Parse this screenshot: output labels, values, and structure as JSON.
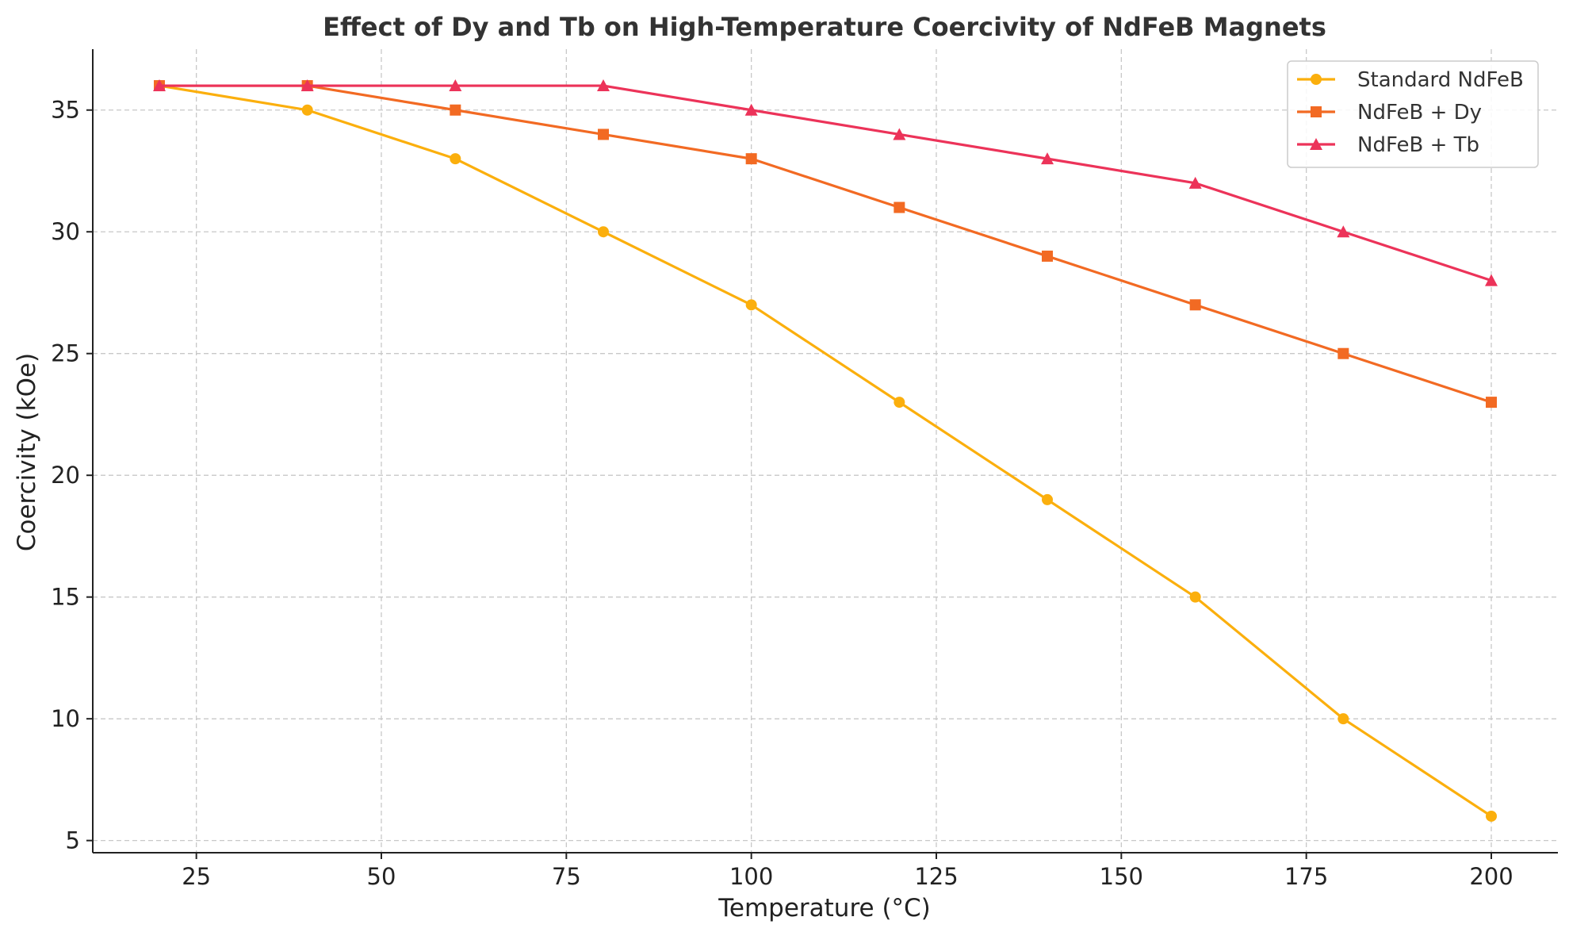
{
  "chart_data": {
    "type": "line",
    "title": "Effect of Dy and Tb on High-Temperature Coercivity of NdFeB Magnets",
    "xlabel": "Temperature (°C)",
    "ylabel": "Coercivity (kOe)",
    "xlim": [
      11,
      209
    ],
    "ylim": [
      4.5,
      37.5
    ],
    "xticks": [
      25,
      50,
      75,
      100,
      125,
      150,
      175,
      200
    ],
    "yticks": [
      5,
      10,
      15,
      20,
      25,
      30,
      35
    ],
    "grid": true,
    "legend_position": "top-right",
    "x": [
      20,
      40,
      60,
      80,
      100,
      120,
      140,
      160,
      180,
      200
    ],
    "series": [
      {
        "name": "Standard NdFeB",
        "color": "#FBAF0D",
        "marker": "circle",
        "values": [
          36,
          35,
          33,
          30,
          27,
          23,
          19,
          15,
          10,
          6
        ]
      },
      {
        "name": "NdFeB + Dy",
        "color": "#F26A23",
        "marker": "square",
        "values": [
          36,
          36,
          35,
          34,
          33,
          31,
          29,
          27,
          25,
          23
        ]
      },
      {
        "name": "NdFeB + Tb",
        "color": "#EC3359",
        "marker": "triangle",
        "values": [
          36,
          36,
          36,
          36,
          35,
          34,
          33,
          32,
          30,
          28
        ]
      }
    ]
  }
}
